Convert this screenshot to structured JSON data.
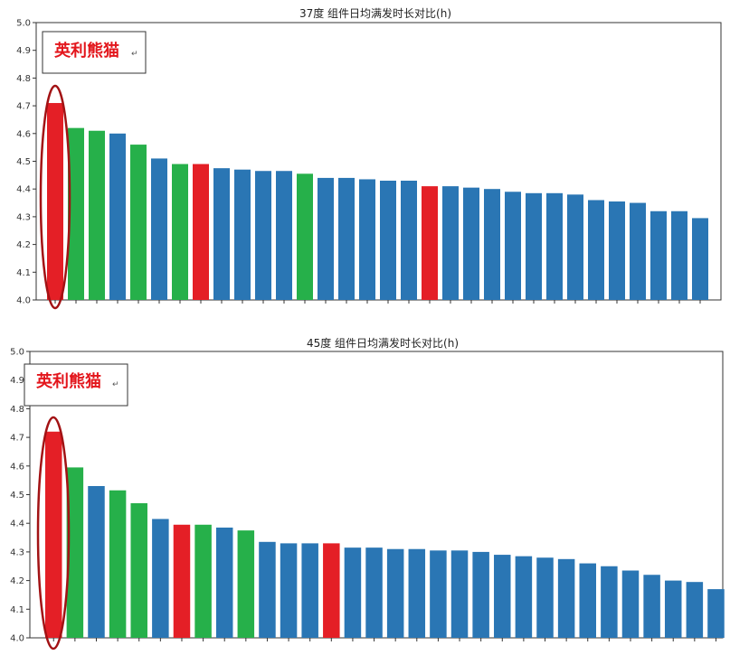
{
  "colors": {
    "blue": "#2a76b4",
    "green": "#26b04a",
    "red": "#e41f26",
    "ellipse": "#a21214"
  },
  "chart_data": [
    {
      "type": "bar",
      "title": "37度 组件日均满发时长对比(h)",
      "ylim": [
        4.0,
        5.0
      ],
      "yticks": [
        "4.0",
        "4.1",
        "4.2",
        "4.3",
        "4.4",
        "4.5",
        "4.6",
        "4.7",
        "4.8",
        "4.9",
        "5.0"
      ],
      "grid": false,
      "annotation": "英利熊猫",
      "return_mark": "↵",
      "values": [
        4.71,
        4.62,
        4.61,
        4.6,
        4.56,
        4.51,
        4.49,
        4.49,
        4.475,
        4.47,
        4.465,
        4.465,
        4.455,
        4.44,
        4.44,
        4.435,
        4.43,
        4.43,
        4.41,
        4.41,
        4.405,
        4.4,
        4.39,
        4.385,
        4.385,
        4.38,
        4.36,
        4.355,
        4.35,
        4.32,
        4.32,
        4.295
      ],
      "colors": [
        "red",
        "green",
        "green",
        "blue",
        "green",
        "blue",
        "green",
        "red",
        "blue",
        "blue",
        "blue",
        "blue",
        "green",
        "blue",
        "blue",
        "blue",
        "blue",
        "blue",
        "red",
        "blue",
        "blue",
        "blue",
        "blue",
        "blue",
        "blue",
        "blue",
        "blue",
        "blue",
        "blue",
        "blue",
        "blue",
        "blue"
      ]
    },
    {
      "type": "bar",
      "title": "45度 组件日均满发时长对比(h)",
      "ylim": [
        4.0,
        5.0
      ],
      "yticks": [
        "4.0",
        "4.1",
        "4.2",
        "4.3",
        "4.4",
        "4.5",
        "4.6",
        "4.7",
        "4.8",
        "4.9",
        "5.0"
      ],
      "grid": false,
      "annotation": "英利熊猫",
      "return_mark": "↵",
      "values": [
        4.72,
        4.595,
        4.53,
        4.515,
        4.47,
        4.415,
        4.395,
        4.395,
        4.385,
        4.375,
        4.335,
        4.33,
        4.33,
        4.33,
        4.315,
        4.315,
        4.31,
        4.31,
        4.305,
        4.305,
        4.3,
        4.29,
        4.285,
        4.28,
        4.275,
        4.26,
        4.25,
        4.235,
        4.22,
        4.2,
        4.195,
        4.17
      ],
      "colors": [
        "red",
        "green",
        "blue",
        "green",
        "green",
        "blue",
        "red",
        "green",
        "blue",
        "green",
        "blue",
        "blue",
        "blue",
        "red",
        "blue",
        "blue",
        "blue",
        "blue",
        "blue",
        "blue",
        "blue",
        "blue",
        "blue",
        "blue",
        "blue",
        "blue",
        "blue",
        "blue",
        "blue",
        "blue",
        "blue",
        "blue"
      ]
    }
  ]
}
